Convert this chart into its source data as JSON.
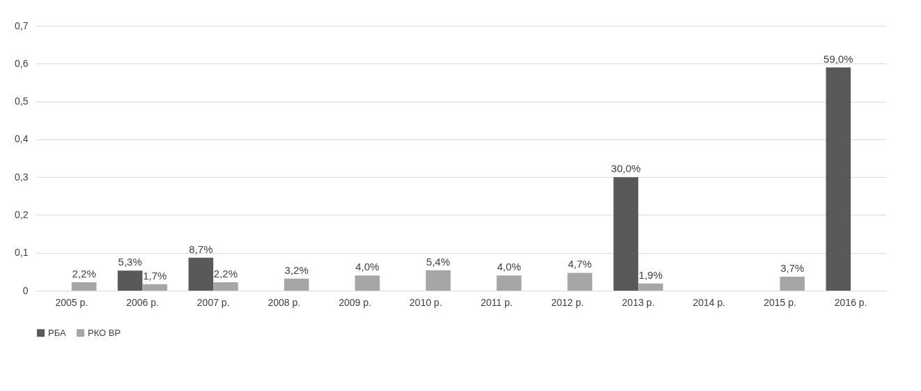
{
  "chart_data": {
    "type": "bar",
    "categories": [
      "2005 р.",
      "2006 р.",
      "2007 р.",
      "2008 р.",
      "2009 р.",
      "2010 р.",
      "2011 р.",
      "2012 р.",
      "2013 р.",
      "2014 р.",
      "2015 р.",
      "2016 р."
    ],
    "series": [
      {
        "name": "РБА",
        "color": "#595959",
        "values": [
          null,
          0.053,
          0.087,
          null,
          null,
          null,
          null,
          null,
          0.3,
          null,
          null,
          0.59
        ],
        "value_labels": [
          null,
          "5,3%",
          "8,7%",
          null,
          null,
          null,
          null,
          null,
          "30,0%",
          null,
          null,
          "59,0%"
        ]
      },
      {
        "name": "РКО ВР",
        "color": "#a6a6a6",
        "values": [
          0.022,
          0.017,
          0.022,
          0.032,
          0.04,
          0.054,
          0.04,
          0.047,
          0.019,
          null,
          0.037,
          null
        ],
        "value_labels": [
          "2,2%",
          "1,7%",
          "2,2%",
          "3,2%",
          "4,0%",
          "5,4%",
          "4,0%",
          "4,7%",
          "1,9%",
          null,
          "3,7%",
          null
        ]
      }
    ],
    "ylim": [
      0,
      0.7
    ],
    "yticks": [
      {
        "value": 0,
        "label": "0"
      },
      {
        "value": 0.1,
        "label": "0,1"
      },
      {
        "value": 0.2,
        "label": "0,2"
      },
      {
        "value": 0.3,
        "label": "0,3"
      },
      {
        "value": 0.4,
        "label": "0,4"
      },
      {
        "value": 0.5,
        "label": "0,5"
      },
      {
        "value": 0.6,
        "label": "0,6"
      },
      {
        "value": 0.7,
        "label": "0,7"
      }
    ],
    "grid": "y",
    "legend": "bottom"
  }
}
